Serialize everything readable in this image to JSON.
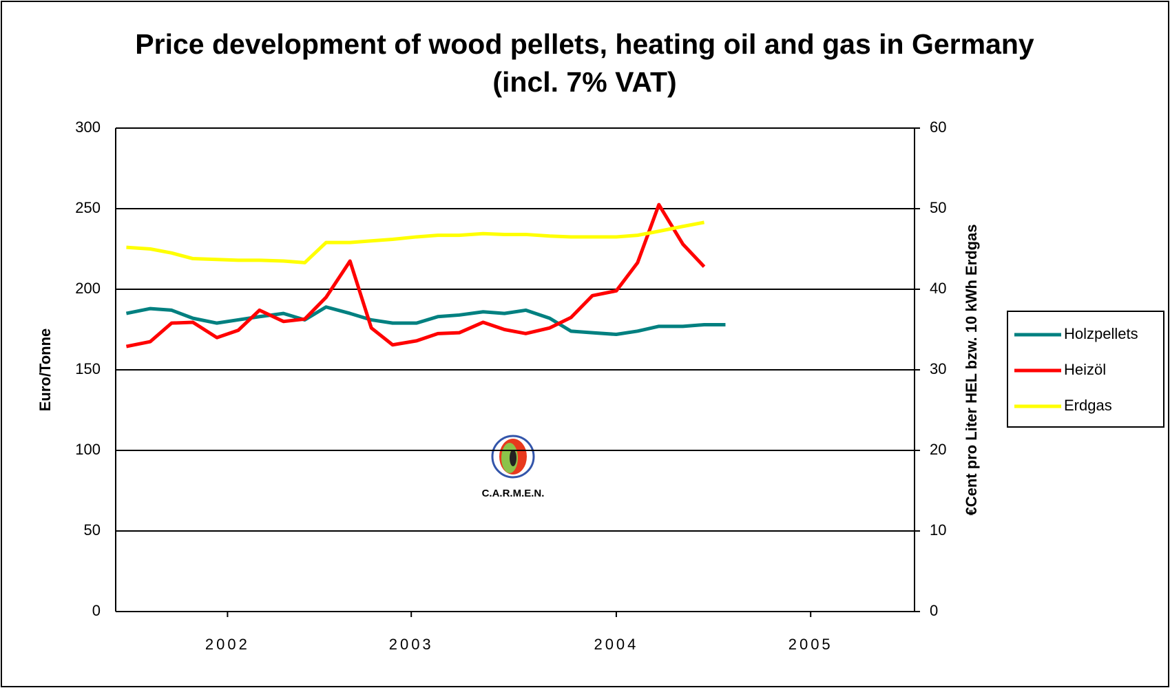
{
  "chart_data": {
    "type": "line",
    "title": [
      "Price development of wood pellets, heating oil and gas in Germany",
      "(incl. 7% VAT)"
    ],
    "y_label": "Euro/Tonne",
    "y2_label": "€Cent pro Liter HEL bzw. 10 kWh Erdgas",
    "logo_text": "C.A.R.M.E.N.",
    "x": [
      2002.04,
      2002.13,
      2002.21,
      2002.29,
      2002.38,
      2002.46,
      2002.54,
      2002.63,
      2002.71,
      2002.79,
      2002.88,
      2002.96,
      2003.04,
      2003.13,
      2003.21,
      2003.29,
      2003.38,
      2003.46,
      2003.54,
      2003.63,
      2003.71,
      2003.79,
      2003.88,
      2003.96,
      2004.04,
      2004.13,
      2004.21,
      2004.29
    ],
    "xlim": [
      2002,
      2005
    ],
    "xticks": [
      {
        "value": 2002.42,
        "label": "2002"
      },
      {
        "value": 2003.11,
        "label": "2003"
      },
      {
        "value": 2003.88,
        "label": "2004"
      },
      {
        "value": 2004.61,
        "label": "2005"
      }
    ],
    "ylim": [
      0,
      300
    ],
    "yticks": [
      0,
      50,
      100,
      150,
      200,
      250,
      300
    ],
    "y2lim": [
      0,
      60
    ],
    "y2ticks": [
      0,
      10,
      20,
      30,
      40,
      50,
      60
    ],
    "grid": true,
    "legend": "right",
    "series": [
      {
        "name": "Holzpellets",
        "color": "#008080",
        "values": [
          185,
          188,
          187,
          182,
          179,
          181,
          183,
          185,
          181,
          189,
          185,
          181,
          179,
          179,
          183,
          184,
          186,
          185,
          187,
          182,
          174,
          173,
          172,
          174,
          177,
          177,
          178,
          178
        ]
      },
      {
        "name": "Heizöl",
        "color": "#ff0000",
        "axis": "y2",
        "values": [
          32.9,
          33.5,
          35.8,
          35.9,
          34,
          34.9,
          37.4,
          36,
          36.3,
          39,
          43.5,
          35.2,
          33.1,
          33.6,
          34.5,
          34.6,
          35.9,
          35,
          34.5,
          35.2,
          36.5,
          39.2,
          39.8,
          43.3,
          50.5,
          45.6,
          42.8,
          null
        ]
      },
      {
        "name": "Erdgas",
        "color": "#ffff00",
        "axis": "y2",
        "values": [
          45.2,
          45,
          44.5,
          43.8,
          43.7,
          43.6,
          43.6,
          43.5,
          43.3,
          45.8,
          45.8,
          46,
          46.2,
          46.5,
          46.7,
          46.7,
          46.9,
          46.8,
          46.8,
          46.6,
          46.5,
          46.5,
          46.5,
          46.7,
          47.2,
          47.8,
          48.3,
          null
        ]
      }
    ]
  }
}
